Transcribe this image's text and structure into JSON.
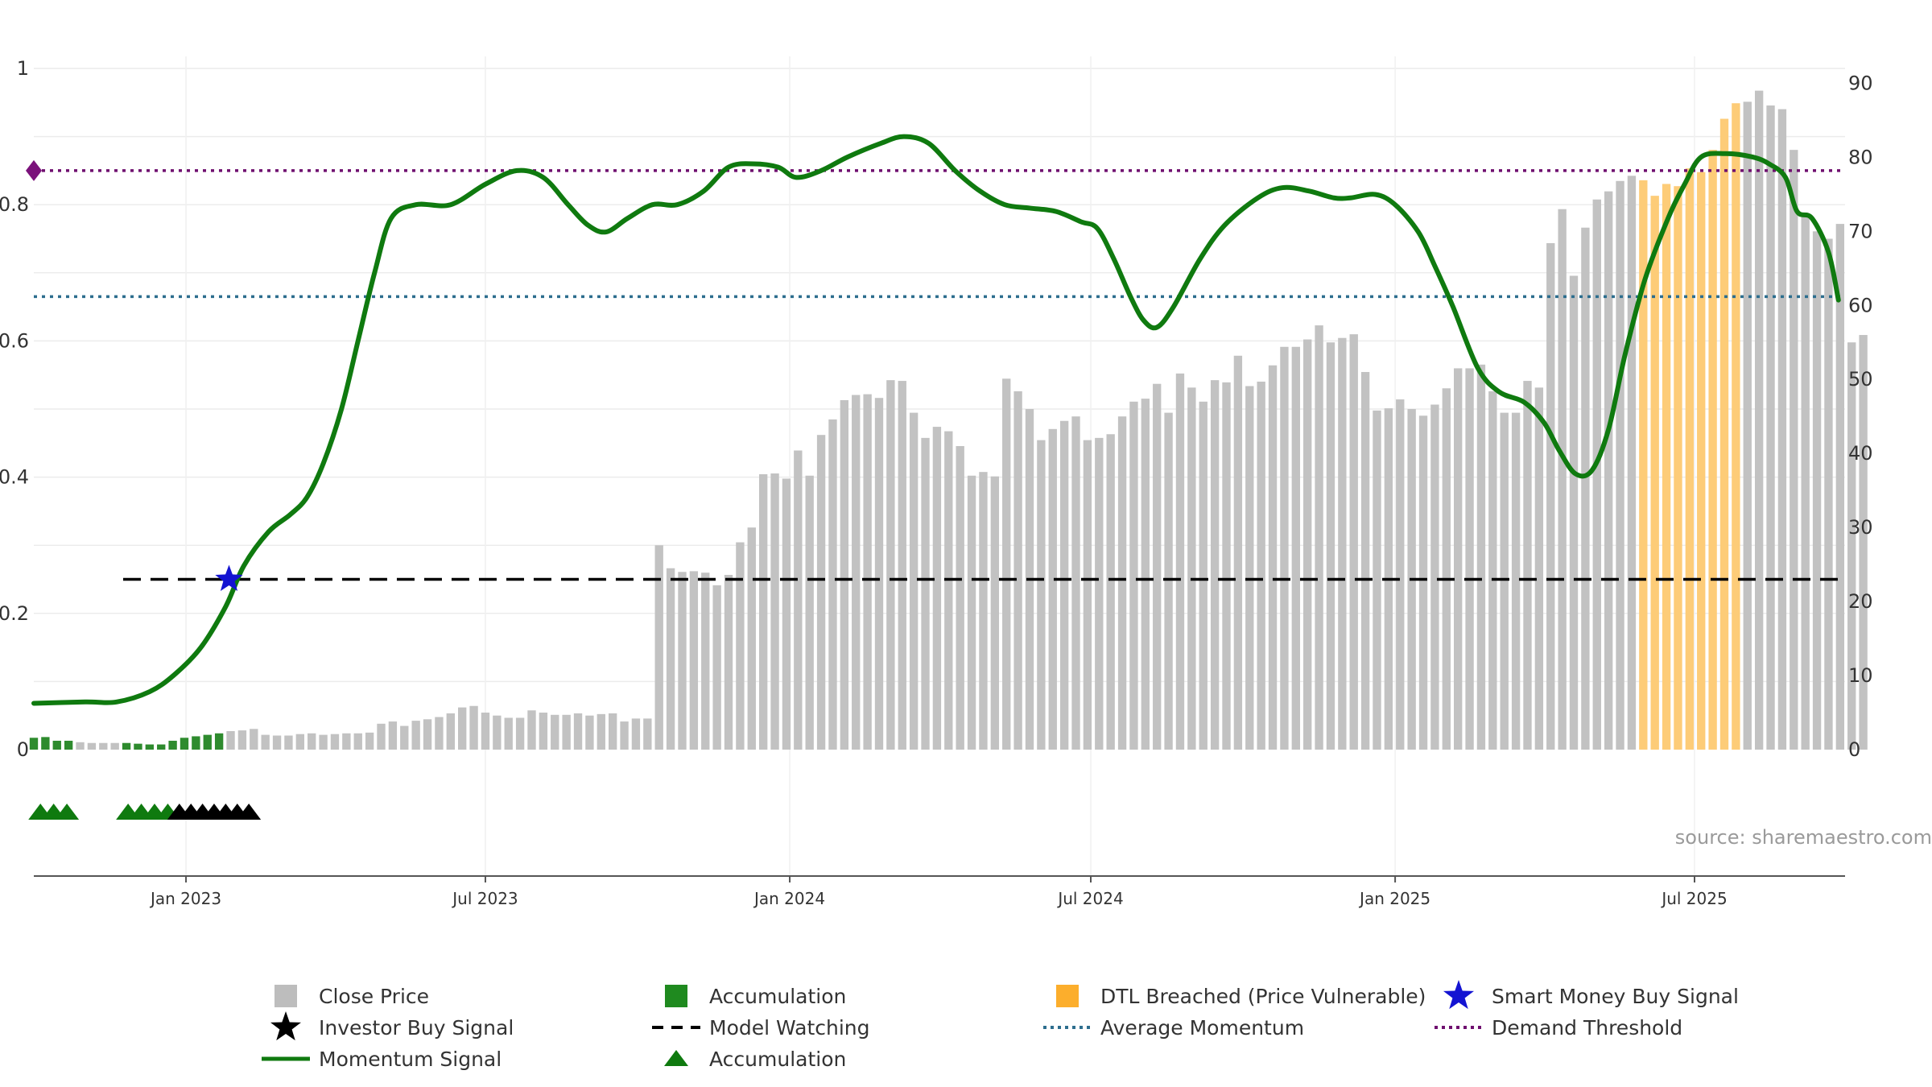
{
  "chart_data": {
    "type": "bar",
    "source_note": "source: sharemaestro.com",
    "left_axis": {
      "ticks": [
        "0",
        "0.2",
        "0.4",
        "0.6",
        "0.8",
        "1"
      ],
      "range": [
        0,
        1
      ]
    },
    "right_axis": {
      "ticks": [
        "0",
        "10",
        "20",
        "30",
        "40",
        "50",
        "60",
        "70",
        "80",
        "90"
      ],
      "range": [
        0,
        92
      ]
    },
    "x_axis": {
      "range": [
        "2022-10-01",
        "2025-09-30"
      ],
      "ticks": [
        {
          "label": "Jan 2023",
          "date": "2023-01-01"
        },
        {
          "label": "Jul 2023",
          "date": "2023-07-01"
        },
        {
          "label": "Jan 2024",
          "date": "2024-01-01"
        },
        {
          "label": "Jul 2024",
          "date": "2024-07-01"
        },
        {
          "label": "Jan 2025",
          "date": "2025-01-01"
        },
        {
          "label": "Jul 2025",
          "date": "2025-07-01"
        }
      ]
    },
    "close_price": {
      "start": "2022-10-01",
      "interval_weeks": 1,
      "values": [
        1.6,
        1.7,
        1.2,
        1.2,
        1.0,
        0.9,
        0.9,
        0.9,
        0.9,
        0.8,
        0.7,
        0.7,
        1.2,
        1.6,
        1.8,
        2.0,
        2.2,
        2.5,
        2.6,
        2.8,
        2.0,
        1.9,
        1.9,
        2.1,
        2.2,
        2.0,
        2.1,
        2.2,
        2.2,
        2.3,
        3.5,
        3.8,
        3.2,
        3.9,
        4.1,
        4.4,
        4.9,
        5.7,
        5.9,
        5.0,
        4.6,
        4.3,
        4.3,
        5.3,
        5.0,
        4.7,
        4.7,
        4.9,
        4.6,
        4.8,
        4.9,
        3.8,
        4.2,
        4.2,
        27.6,
        24.5,
        24.0,
        24.1,
        23.9,
        22.2,
        23.6,
        28.0,
        30.0,
        37.2,
        37.3,
        36.6,
        40.4,
        37.0,
        42.5,
        44.6,
        47.2,
        47.9,
        48.0,
        47.5,
        49.9,
        49.8,
        45.5,
        42.1,
        43.6,
        43.0,
        41.0,
        37.0,
        37.5,
        36.9,
        50.1,
        48.4,
        46.0,
        41.8,
        43.3,
        44.4,
        45.0,
        41.8,
        42.1,
        42.6,
        45.0,
        47.0,
        47.4,
        49.4,
        45.5,
        50.8,
        48.9,
        47.0,
        49.9,
        49.6,
        53.2,
        49.1,
        49.7,
        51.9,
        54.4,
        54.4,
        55.4,
        57.3,
        55.0,
        55.6,
        56.1,
        51.0,
        45.8,
        46.1,
        47.3,
        46.0,
        45.1,
        46.6,
        48.8,
        51.5,
        51.5,
        52.0,
        48.4,
        45.5,
        45.5,
        49.8,
        48.9,
        68.4,
        73.0,
        64.0,
        70.5,
        74.3,
        75.4,
        76.8,
        77.5,
        76.9,
        74.8,
        76.4,
        76.1,
        78.5,
        78.0,
        81.0,
        85.2,
        87.3,
        87.5,
        89.0,
        87.0,
        86.5,
        81.0,
        72.0,
        70.0,
        69.0,
        71.0,
        55.0,
        56.0
      ]
    },
    "bar_colors": {
      "close_price": "#c2c2c2",
      "accumulation": "#2e8b2e",
      "dtl_breached": "#fdcc78"
    },
    "accumulation_ranges": [
      {
        "start": "2022-10-01",
        "end": "2022-10-28"
      },
      {
        "start": "2022-11-24",
        "end": "2023-01-25"
      }
    ],
    "dtl_breached_range": {
      "start": "2025-05-28",
      "end": "2025-07-31"
    },
    "momentum_signal": {
      "color": "#0f7a0f",
      "points": [
        [
          "2022-10-01",
          0.068
        ],
        [
          "2022-11-01",
          0.07
        ],
        [
          "2022-11-20",
          0.07
        ],
        [
          "2022-12-10",
          0.085
        ],
        [
          "2022-12-25",
          0.11
        ],
        [
          "2023-01-10",
          0.15
        ],
        [
          "2023-01-25",
          0.21
        ],
        [
          "2023-02-05",
          0.27
        ],
        [
          "2023-02-20",
          0.32
        ],
        [
          "2023-03-05",
          0.345
        ],
        [
          "2023-03-15",
          0.37
        ],
        [
          "2023-03-25",
          0.42
        ],
        [
          "2023-04-05",
          0.5
        ],
        [
          "2023-04-15",
          0.6
        ],
        [
          "2023-04-25",
          0.7
        ],
        [
          "2023-05-05",
          0.78
        ],
        [
          "2023-05-20",
          0.8
        ],
        [
          "2023-06-10",
          0.8
        ],
        [
          "2023-07-01",
          0.83
        ],
        [
          "2023-07-20",
          0.85
        ],
        [
          "2023-08-05",
          0.84
        ],
        [
          "2023-08-20",
          0.8
        ],
        [
          "2023-09-01",
          0.77
        ],
        [
          "2023-09-12",
          0.76
        ],
        [
          "2023-09-25",
          0.78
        ],
        [
          "2023-10-10",
          0.8
        ],
        [
          "2023-10-25",
          0.8
        ],
        [
          "2023-11-10",
          0.82
        ],
        [
          "2023-11-25",
          0.855
        ],
        [
          "2023-12-10",
          0.86
        ],
        [
          "2023-12-25",
          0.855
        ],
        [
          "2024-01-05",
          0.84
        ],
        [
          "2024-01-20",
          0.85
        ],
        [
          "2024-02-05",
          0.87
        ],
        [
          "2024-02-25",
          0.89
        ],
        [
          "2024-03-10",
          0.9
        ],
        [
          "2024-03-25",
          0.89
        ],
        [
          "2024-04-10",
          0.85
        ],
        [
          "2024-04-25",
          0.82
        ],
        [
          "2024-05-10",
          0.8
        ],
        [
          "2024-05-25",
          0.795
        ],
        [
          "2024-06-10",
          0.79
        ],
        [
          "2024-06-25",
          0.775
        ],
        [
          "2024-07-05",
          0.765
        ],
        [
          "2024-07-15",
          0.72
        ],
        [
          "2024-07-25",
          0.665
        ],
        [
          "2024-08-02",
          0.63
        ],
        [
          "2024-08-10",
          0.62
        ],
        [
          "2024-08-20",
          0.65
        ],
        [
          "2024-09-05",
          0.72
        ],
        [
          "2024-09-20",
          0.77
        ],
        [
          "2024-10-10",
          0.81
        ],
        [
          "2024-10-25",
          0.825
        ],
        [
          "2024-11-10",
          0.82
        ],
        [
          "2024-11-25",
          0.81
        ],
        [
          "2024-12-05",
          0.81
        ],
        [
          "2024-12-20",
          0.815
        ],
        [
          "2025-01-01",
          0.8
        ],
        [
          "2025-01-15",
          0.76
        ],
        [
          "2025-01-25",
          0.71
        ],
        [
          "2025-02-05",
          0.65
        ],
        [
          "2025-02-20",
          0.56
        ],
        [
          "2025-03-05",
          0.525
        ],
        [
          "2025-03-20",
          0.51
        ],
        [
          "2025-04-01",
          0.48
        ],
        [
          "2025-04-10",
          0.44
        ],
        [
          "2025-04-20",
          0.405
        ],
        [
          "2025-04-30",
          0.41
        ],
        [
          "2025-05-10",
          0.47
        ],
        [
          "2025-05-20",
          0.58
        ],
        [
          "2025-06-01",
          0.69
        ],
        [
          "2025-06-15",
          0.78
        ],
        [
          "2025-06-25",
          0.83
        ],
        [
          "2025-07-05",
          0.87
        ],
        [
          "2025-07-20",
          0.875
        ],
        [
          "2025-08-05",
          0.87
        ],
        [
          "2025-08-15",
          0.86
        ],
        [
          "2025-08-25",
          0.84
        ],
        [
          "2025-09-01",
          0.79
        ],
        [
          "2025-09-10",
          0.78
        ],
        [
          "2025-09-20",
          0.73
        ],
        [
          "2025-09-26",
          0.66
        ]
      ]
    },
    "demand_threshold": {
      "value": 0.85,
      "color": "#6f0f6f",
      "marker_color": "#7b127b"
    },
    "average_momentum": {
      "value": 0.665,
      "color": "#2d6e8e"
    },
    "model_watching": {
      "value": 0.25,
      "start": "2022-11-24",
      "end": "2025-09-30"
    },
    "smart_money_buy_signal": {
      "date": "2023-01-27",
      "value": 0.25,
      "color": "#1414d2"
    },
    "accumulation_triangles": {
      "color": "#0f7a0f",
      "dates": [
        "2022-10-05",
        "2022-10-13",
        "2022-10-21",
        "2022-11-27",
        "2022-12-05",
        "2022-12-13",
        "2022-12-21"
      ]
    },
    "investor_buy_triangles": {
      "color": "#000000",
      "dates": [
        "2022-12-28",
        "2023-01-04",
        "2023-01-11",
        "2023-01-18",
        "2023-01-25",
        "2023-02-01",
        "2023-02-08"
      ]
    },
    "legend": [
      {
        "label": "Close Price",
        "symbol": "square",
        "color": "#bdbdbd"
      },
      {
        "label": "Accumulation",
        "symbol": "square",
        "color": "#1f8a1f"
      },
      {
        "label": "DTL Breached (Price Vulnerable)",
        "symbol": "square",
        "color": "#fcae2c"
      },
      {
        "label": "Smart Money Buy Signal",
        "symbol": "star",
        "color": "#1414d2"
      },
      {
        "label": "Investor Buy Signal",
        "symbol": "star",
        "color": "#000000"
      },
      {
        "label": "Model Watching",
        "symbol": "dash",
        "color": "#000000"
      },
      {
        "label": "Average Momentum",
        "symbol": "dot",
        "color": "#2d6e8e"
      },
      {
        "label": "Demand Threshold",
        "symbol": "dot",
        "color": "#6f0f6f"
      },
      {
        "label": "Momentum Signal",
        "symbol": "line",
        "color": "#0f7a0f"
      },
      {
        "label": "Accumulation",
        "symbol": "triangle",
        "color": "#0f7a0f"
      }
    ]
  }
}
